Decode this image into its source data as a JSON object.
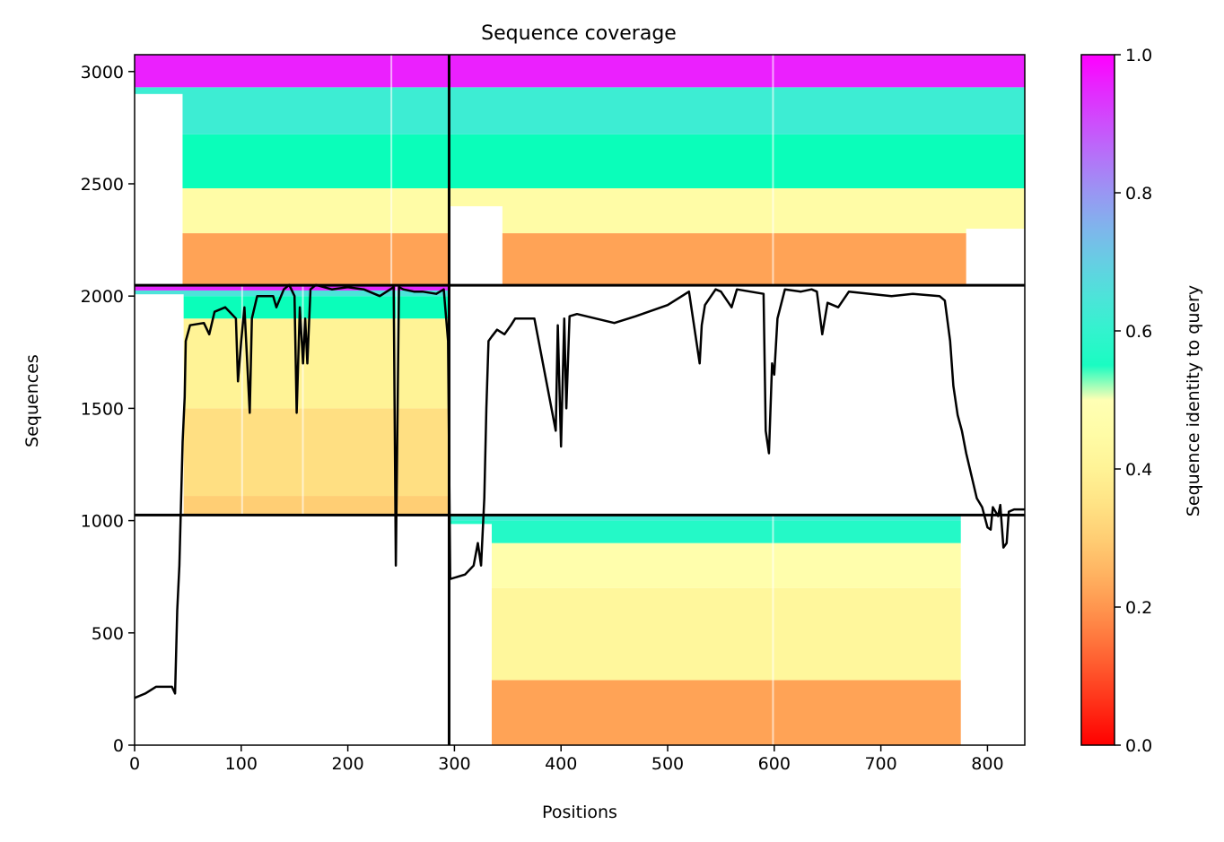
{
  "chart_data": {
    "type": "heatmap",
    "title": "Sequence coverage",
    "xlabel": "Positions",
    "ylabel": "Sequences",
    "xlim": [
      0,
      835
    ],
    "ylim": [
      0,
      3075
    ],
    "x_ticks": [
      0,
      100,
      200,
      300,
      400,
      500,
      600,
      700,
      800
    ],
    "y_ticks": [
      0,
      500,
      1000,
      1500,
      2000,
      2500,
      3000
    ],
    "grid": false,
    "colorbar": {
      "label": "Sequence identity to query",
      "range": [
        0.0,
        1.0
      ],
      "ticks": [
        "0.0",
        "0.2",
        "0.4",
        "0.6",
        "0.8",
        "1.0"
      ],
      "colormap": "rainbow_r"
    },
    "chain_boundaries": {
      "positions": [
        295
      ],
      "sequences": [
        1025,
        2048
      ]
    },
    "blocks": [
      {
        "name": "chain-1-block",
        "x_range": [
          0,
          295
        ],
        "y_range": [
          1025,
          2048
        ],
        "aligned_start": 46,
        "identity_bands": [
          {
            "from": 1025,
            "to": 1110,
            "identity": 0.3
          },
          {
            "from": 1110,
            "to": 1500,
            "identity": 0.34
          },
          {
            "from": 1500,
            "to": 1900,
            "identity": 0.4
          },
          {
            "from": 1900,
            "to": 2000,
            "identity": 0.52
          },
          {
            "from": 2000,
            "to": 2025,
            "identity": 0.65
          },
          {
            "from": 2025,
            "to": 2048,
            "identity": 0.95
          }
        ]
      },
      {
        "name": "chain-2-block",
        "x_range": [
          295,
          835
        ],
        "y_range": [
          0,
          1025
        ],
        "aligned_start": 335,
        "aligned_end": 775,
        "identity_bands": [
          {
            "from": 0,
            "to": 290,
            "identity": 0.22
          },
          {
            "from": 290,
            "to": 700,
            "identity": 0.42
          },
          {
            "from": 700,
            "to": 900,
            "identity": 0.47
          },
          {
            "from": 900,
            "to": 1000,
            "identity": 0.57
          },
          {
            "from": 1000,
            "to": 1025,
            "identity": 0.63
          }
        ]
      },
      {
        "name": "paired-block",
        "x_range": [
          0,
          835
        ],
        "y_range": [
          2048,
          3075
        ],
        "identity_bands": [
          {
            "from": 2048,
            "to": 2280,
            "identity": 0.22
          },
          {
            "from": 2280,
            "to": 2480,
            "identity": 0.45
          },
          {
            "from": 2480,
            "to": 2720,
            "identity": 0.52
          },
          {
            "from": 2720,
            "to": 2930,
            "identity": 0.62
          },
          {
            "from": 2930,
            "to": 3075,
            "identity": 0.96
          }
        ]
      }
    ],
    "coverage_line": {
      "name": "coverage",
      "color": "#000000",
      "x": [
        0,
        10,
        20,
        35,
        38,
        40,
        42,
        45,
        47,
        48,
        52,
        65,
        70,
        75,
        85,
        95,
        97,
        100,
        103,
        108,
        110,
        115,
        130,
        133,
        140,
        145,
        150,
        152,
        155,
        158,
        160,
        162,
        165,
        170,
        185,
        200,
        215,
        230,
        243,
        245,
        248,
        252,
        262,
        270,
        283,
        290,
        294,
        296,
        310,
        318,
        322,
        325,
        328,
        330,
        332,
        335,
        340,
        347,
        353,
        357,
        375,
        395,
        397,
        400,
        403,
        405,
        408,
        415,
        450,
        470,
        500,
        520,
        530,
        532,
        535,
        545,
        550,
        560,
        565,
        590,
        592,
        595,
        598,
        600,
        603,
        610,
        625,
        635,
        640,
        645,
        650,
        660,
        670,
        690,
        710,
        730,
        755,
        760,
        765,
        768,
        772,
        776,
        780,
        785,
        790,
        795,
        800,
        803,
        805,
        810,
        812,
        815,
        818,
        820,
        825,
        835
      ],
      "y": [
        210,
        230,
        260,
        260,
        230,
        600,
        800,
        1350,
        1550,
        1800,
        1870,
        1880,
        1830,
        1930,
        1950,
        1900,
        1620,
        1800,
        1950,
        1480,
        1900,
        2000,
        2000,
        1950,
        2030,
        2050,
        2000,
        1480,
        1950,
        1700,
        1900,
        1700,
        2030,
        2050,
        2030,
        2040,
        2030,
        2000,
        2040,
        800,
        2040,
        2030,
        2020,
        2020,
        2010,
        2030,
        1800,
        740,
        760,
        800,
        900,
        800,
        1100,
        1500,
        1800,
        1820,
        1850,
        1830,
        1870,
        1900,
        1900,
        1400,
        1870,
        1330,
        1900,
        1500,
        1910,
        1920,
        1880,
        1910,
        1960,
        2020,
        1700,
        1870,
        1960,
        2030,
        2020,
        1950,
        2030,
        2010,
        1400,
        1300,
        1700,
        1650,
        1900,
        2030,
        2020,
        2030,
        2020,
        1830,
        1970,
        1950,
        2020,
        2010,
        2000,
        2010,
        2000,
        1980,
        1800,
        1600,
        1470,
        1400,
        1300,
        1200,
        1100,
        1060,
        970,
        960,
        1060,
        1020,
        1070,
        880,
        900,
        1040,
        1050,
        1050
      ]
    }
  }
}
